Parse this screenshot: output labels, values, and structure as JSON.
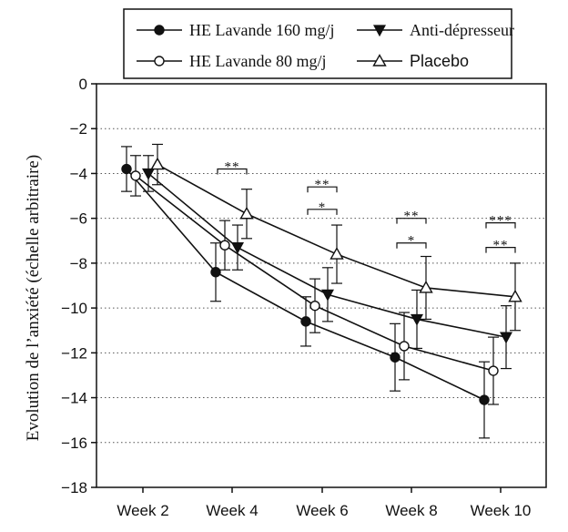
{
  "chart_data": {
    "type": "line",
    "categories": [
      "Week 2",
      "Week 4",
      "Week 6",
      "Week 8",
      "Week 10"
    ],
    "ylabel": "Evolution de l’anxiété (échelle arbitraire)",
    "xlabel": "",
    "ylim": [
      -18,
      0
    ],
    "yticks": [
      0,
      -2,
      -4,
      -6,
      -8,
      -10,
      -12,
      -14,
      -16,
      -18
    ],
    "grid": "horizontal dotted",
    "legend_position": "top",
    "series": [
      {
        "name": "HE Lavande 160 mg/j",
        "marker": "filled-circle",
        "values": [
          -3.8,
          -8.4,
          -10.6,
          -12.2,
          -14.1
        ],
        "error": [
          1.0,
          1.3,
          1.1,
          1.5,
          1.7
        ]
      },
      {
        "name": "HE Lavande 80 mg/j",
        "marker": "open-circle",
        "values": [
          -4.1,
          -7.2,
          -9.9,
          -11.7,
          -12.8
        ],
        "error": [
          0.9,
          1.1,
          1.2,
          1.5,
          1.5
        ]
      },
      {
        "name": "Anti-dépresseur",
        "marker": "filled-triangle-down",
        "values": [
          -4.0,
          -7.3,
          -9.4,
          -10.5,
          -11.3
        ],
        "error": [
          0.8,
          1.0,
          1.2,
          1.3,
          1.4
        ]
      },
      {
        "name": "Placebo",
        "marker": "open-triangle-up",
        "values": [
          -3.6,
          -5.8,
          -7.6,
          -9.1,
          -9.5
        ],
        "error": [
          0.9,
          1.1,
          1.3,
          1.4,
          1.5
        ]
      }
    ],
    "significance": [
      {
        "category": "Week 4",
        "label": "**",
        "y": -3.8
      },
      {
        "category": "Week 6",
        "label": "**",
        "y": -4.6
      },
      {
        "category": "Week 6",
        "label": "*",
        "y": -5.6
      },
      {
        "category": "Week 8",
        "label": "**",
        "y": -6.0
      },
      {
        "category": "Week 8",
        "label": "*",
        "y": -7.1
      },
      {
        "category": "Week 10",
        "label": "***",
        "y": -6.2
      },
      {
        "category": "Week 10",
        "label": "**",
        "y": -7.3
      }
    ]
  }
}
